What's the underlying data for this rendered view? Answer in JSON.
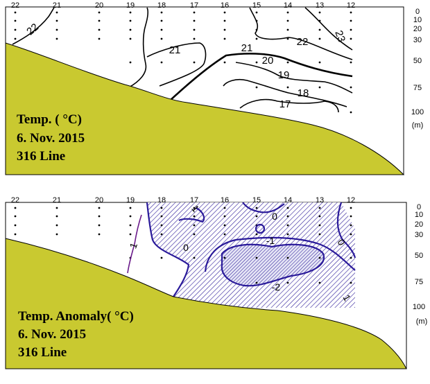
{
  "chart_data": [
    {
      "type": "contour",
      "title_lines": [
        "Temp. ( °C)",
        "6. Nov. 2015",
        "316 Line"
      ],
      "stations": [
        "22",
        "21",
        "20",
        "19",
        "18",
        "17",
        "16",
        "15",
        "14",
        "13",
        "12"
      ],
      "depth_ticks": [
        "0",
        "10",
        "20",
        "30",
        "50",
        "75",
        "100"
      ],
      "depth_unit": "(m)",
      "contour_labels": [
        "22",
        "21",
        "21",
        "20",
        "19",
        "18",
        "17",
        "22",
        "23"
      ],
      "colors": {
        "line": "#000000",
        "seafloor": "#c9c930"
      }
    },
    {
      "type": "contour",
      "title_lines": [
        "Temp. Anomaly( °C)",
        "6. Nov. 2015",
        "316 Line"
      ],
      "stations": [
        "22",
        "21",
        "20",
        "19",
        "18",
        "17",
        "16",
        "15",
        "14",
        "13",
        "12"
      ],
      "depth_ticks": [
        "0",
        "10",
        "20",
        "30",
        "50",
        "75",
        "100"
      ],
      "depth_unit": "(m)",
      "contour_labels": [
        "1",
        "1",
        "0",
        "0",
        "0",
        "-1",
        "-2",
        "1",
        "1"
      ],
      "colors": {
        "line": "#2a1a9a",
        "positive_line": "#6a1a8a",
        "negative_hatch": "#3a2aa0",
        "seafloor": "#c9c930"
      }
    }
  ]
}
